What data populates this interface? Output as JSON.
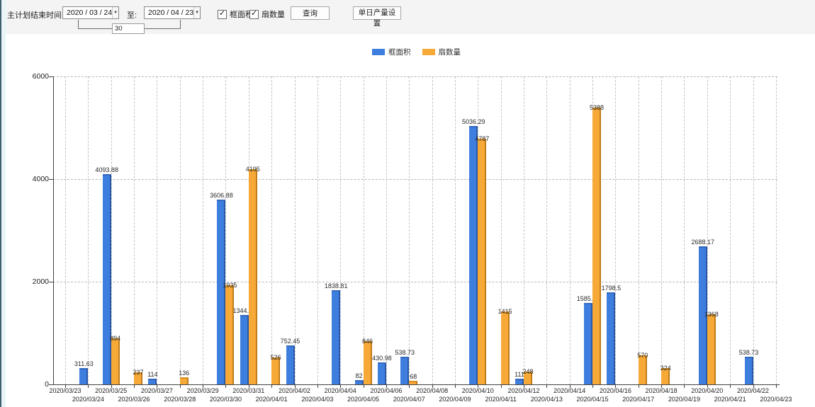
{
  "toolbar": {
    "plan_end_label": "主计划结束时间:",
    "date_from": "2020 / 03 / 24",
    "to_label": "至:",
    "date_to": "2020 / 04 / 23",
    "interval_days": "30",
    "checkbox_frame_area": "框面积",
    "checkbox_fan_count": "扇数量",
    "query_button": "查询",
    "daily_output_button": "单日产量设置"
  },
  "legend": [
    {
      "label": "框面积",
      "color": "#3e7edf"
    },
    {
      "label": "扇数量",
      "color": "#f6a937"
    }
  ],
  "chart_data": {
    "type": "bar",
    "title": "",
    "xlabel": "",
    "ylabel": "",
    "ylim": [
      0,
      6000
    ],
    "yticks": [
      0,
      2000,
      4000,
      6000
    ],
    "grid": true,
    "legend_position": "top",
    "categories": [
      "2020/03/23",
      "2020/03/24",
      "2020/03/25",
      "2020/03/26",
      "2020/03/27",
      "2020/03/28",
      "2020/03/29",
      "2020/03/30",
      "2020/03/31",
      "2020/04/01",
      "2020/04/02",
      "2020/04/03",
      "2020/04/04",
      "2020/04/05",
      "2020/04/06",
      "2020/04/07",
      "2020/04/08",
      "2020/04/09",
      "2020/04/10",
      "2020/04/11",
      "2020/04/12",
      "2020/04/13",
      "2020/04/14",
      "2020/04/15",
      "2020/04/16",
      "2020/04/17",
      "2020/04/18",
      "2020/04/19",
      "2020/04/20",
      "2020/04/21",
      "2020/04/22",
      "2020/04/23"
    ],
    "series": [
      {
        "name": "框面积",
        "color": "#3e7edf",
        "values": [
          null,
          311.63,
          4093.88,
          null,
          114,
          null,
          null,
          3606.88,
          1344.95,
          null,
          752.45,
          null,
          1838.81,
          82,
          430.98,
          538.73,
          null,
          null,
          5036.29,
          null,
          111,
          null,
          null,
          1585.96,
          1798.5,
          null,
          null,
          null,
          2688.17,
          null,
          538.73,
          null
        ]
      },
      {
        "name": "扇数量",
        "color": "#f6a937",
        "values": [
          null,
          null,
          894,
          237,
          null,
          136,
          null,
          1935,
          4195,
          526,
          null,
          null,
          null,
          846,
          null,
          68,
          null,
          null,
          4787,
          1415,
          248,
          null,
          null,
          5388,
          null,
          570,
          324,
          null,
          1368,
          null,
          null,
          null
        ]
      }
    ]
  }
}
